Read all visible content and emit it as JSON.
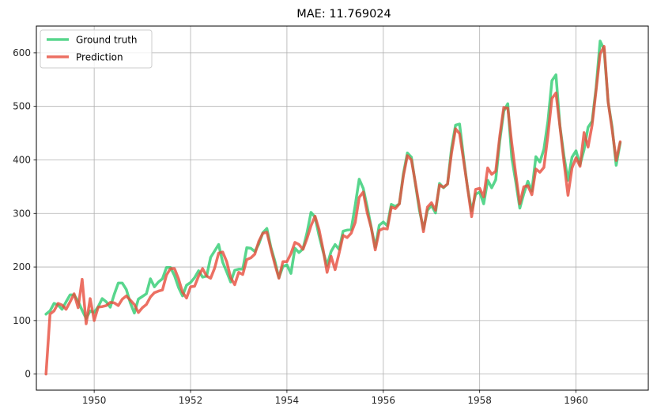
{
  "chart_data": {
    "type": "line",
    "title": "MAE: 11.769024",
    "xlabel": "",
    "ylabel": "",
    "xlim": [
      1948.8,
      1961.5
    ],
    "ylim": [
      -30,
      650
    ],
    "x_ticks": [
      1950,
      1952,
      1954,
      1956,
      1958,
      1960
    ],
    "y_ticks": [
      0,
      100,
      200,
      300,
      400,
      500,
      600
    ],
    "grid": true,
    "legend_position": "top-left",
    "x_start": 1949.0,
    "x_step": 0.08333333,
    "series": [
      {
        "name": "Ground truth",
        "color": "#2ecc71",
        "values": [
          112,
          118,
          132,
          129,
          121,
          135,
          148,
          148,
          136,
          119,
          104,
          118,
          115,
          126,
          141,
          135,
          125,
          149,
          170,
          170,
          158,
          133,
          114,
          140,
          145,
          150,
          178,
          163,
          172,
          178,
          199,
          199,
          184,
          162,
          146,
          166,
          171,
          180,
          193,
          181,
          183,
          218,
          230,
          242,
          209,
          191,
          172,
          194,
          196,
          196,
          236,
          235,
          229,
          243,
          264,
          272,
          237,
          211,
          180,
          201,
          204,
          188,
          235,
          227,
          234,
          264,
          302,
          293,
          259,
          229,
          203,
          229,
          242,
          233,
          267,
          269,
          270,
          315,
          364,
          347,
          312,
          274,
          237,
          278,
          284,
          277,
          317,
          313,
          318,
          374,
          413,
          405,
          355,
          306,
          271,
          306,
          315,
          301,
          356,
          348,
          355,
          422,
          465,
          467,
          404,
          347,
          305,
          336,
          340,
          318,
          362,
          348,
          363,
          435,
          491,
          505,
          404,
          359,
          310,
          337,
          360,
          342,
          406,
          396,
          420,
          472,
          548,
          559,
          463,
          407,
          362,
          405,
          417,
          391,
          419,
          461,
          472,
          535,
          622,
          606,
          508,
          461,
          390,
          432
        ]
      },
      {
        "name": "Prediction",
        "color": "#e74c3c",
        "values": [
          0,
          112,
          118,
          132,
          129,
          121,
          135,
          150,
          124,
          177,
          94,
          141,
          100,
          125,
          126,
          128,
          134,
          133,
          128,
          140,
          146,
          138,
          130,
          115,
          124,
          130,
          144,
          152,
          155,
          157,
          185,
          197,
          197,
          178,
          153,
          142,
          163,
          164,
          183,
          197,
          183,
          179,
          198,
          226,
          228,
          210,
          180,
          167,
          190,
          186,
          214,
          217,
          224,
          248,
          263,
          265,
          234,
          205,
          179,
          210,
          210,
          225,
          246,
          242,
          233,
          253,
          277,
          295,
          270,
          233,
          190,
          220,
          195,
          226,
          259,
          255,
          263,
          283,
          330,
          340,
          301,
          273,
          232,
          268,
          272,
          271,
          312,
          309,
          318,
          370,
          408,
          400,
          357,
          312,
          266,
          312,
          320,
          306,
          353,
          349,
          355,
          413,
          458,
          449,
          399,
          347,
          294,
          345,
          347,
          331,
          385,
          373,
          379,
          444,
          498,
          497,
          431,
          373,
          318,
          350,
          352,
          335,
          383,
          377,
          386,
          446,
          515,
          525,
          462,
          396,
          334,
          385,
          404,
          388,
          451,
          424,
          465,
          530,
          598,
          612,
          508,
          456,
          399,
          434
        ]
      }
    ]
  }
}
